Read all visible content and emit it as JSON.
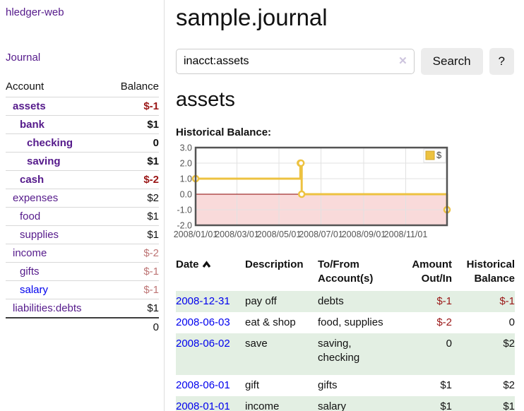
{
  "app": {
    "brand": "hledger-web"
  },
  "colors": {
    "link_purple": "#551a8b",
    "link_blue": "#0000ee",
    "negative_strong": "#9a1616",
    "negative_soft": "#bd7474",
    "row_stripe_green": "#e3efe3",
    "chart_line_gold": "#edc240",
    "chart_negative_region": "#f9dada",
    "chart_zero_line": "#8b0000"
  },
  "sidebar": {
    "nav_journal": "Journal",
    "col_account": "Account",
    "col_balance": "Balance",
    "accounts": [
      {
        "name": "assets",
        "indent": 1,
        "bold": true,
        "balance": "$-1",
        "tone": "neg"
      },
      {
        "name": "bank",
        "indent": 2,
        "bold": true,
        "balance": "$1",
        "tone": ""
      },
      {
        "name": "checking",
        "indent": 3,
        "bold": true,
        "balance": "0",
        "tone": ""
      },
      {
        "name": "saving",
        "indent": 3,
        "bold": true,
        "balance": "$1",
        "tone": ""
      },
      {
        "name": "cash",
        "indent": 2,
        "bold": true,
        "balance": "$-2",
        "tone": "neg"
      },
      {
        "name": "expenses",
        "indent": 1,
        "bold": false,
        "balance": "$2",
        "tone": ""
      },
      {
        "name": "food",
        "indent": 2,
        "bold": false,
        "balance": "$1",
        "tone": ""
      },
      {
        "name": "supplies",
        "indent": 2,
        "bold": false,
        "balance": "$1",
        "tone": ""
      },
      {
        "name": "income",
        "indent": 1,
        "bold": false,
        "balance": "$-2",
        "tone": "negsoft"
      },
      {
        "name": "gifts",
        "indent": 2,
        "bold": false,
        "balance": "$-1",
        "tone": "negsoft"
      },
      {
        "name": "salary",
        "indent": 2,
        "bold": false,
        "balance": "$-1",
        "tone": "negsoft",
        "unvisited": true
      },
      {
        "name": "liabilities:debts",
        "indent": 1,
        "bold": false,
        "balance": "$1",
        "tone": ""
      }
    ],
    "total": "0"
  },
  "header": {
    "title": "sample.journal"
  },
  "search": {
    "value": "inacct:assets",
    "clear_icon": "✕",
    "button_label": "Search",
    "help_label": "?"
  },
  "register": {
    "heading": "assets",
    "chart_label": "Historical Balance:",
    "table": {
      "h_date": "Date",
      "sort": "ascending",
      "h_desc": "Description",
      "h_accounts": "To/From Account(s)",
      "h_amount": "Amount Out/In",
      "h_balance": "Historical Balance",
      "rows": [
        {
          "date": "2008-12-31",
          "description": "pay off",
          "accounts": "debts",
          "amount": "$-1",
          "amount_neg": true,
          "balance": "$-1",
          "balance_neg": true,
          "tall": false
        },
        {
          "date": "2008-06-03",
          "description": "eat & shop",
          "accounts": "food, supplies",
          "amount": "$-2",
          "amount_neg": true,
          "balance": "0",
          "balance_neg": false,
          "tall": false
        },
        {
          "date": "2008-06-02",
          "description": "save",
          "accounts": "saving, checking",
          "amount": "0",
          "amount_neg": false,
          "balance": "$2",
          "balance_neg": false,
          "tall": true
        },
        {
          "date": "2008-06-01",
          "description": "gift",
          "accounts": "gifts",
          "amount": "$1",
          "amount_neg": false,
          "balance": "$2",
          "balance_neg": false,
          "tall": false
        },
        {
          "date": "2008-01-01",
          "description": "income",
          "accounts": "salary",
          "amount": "$1",
          "amount_neg": false,
          "balance": "$1",
          "balance_neg": false,
          "tall": false
        }
      ]
    }
  },
  "chart_data": {
    "type": "line",
    "title": "Historical Balance",
    "x_start": "2008-01-01",
    "x_end": "2008-12-31",
    "ylim": [
      -2,
      3
    ],
    "y_ticks": [
      3,
      2,
      1,
      0,
      -1,
      -2
    ],
    "x_ticks": [
      "2008/01/01",
      "2008/03/01",
      "2008/05/01",
      "2008/07/01",
      "2008/09/01",
      "2008/11/01"
    ],
    "grid": true,
    "legend_position": "top-right",
    "negative_region_color": "#f9dada",
    "zero_line_color": "#8b0000",
    "series": [
      {
        "name": "$",
        "color": "#edc240",
        "steps": true,
        "points": [
          [
            "2008-01-01",
            1
          ],
          [
            "2008-06-01",
            2
          ],
          [
            "2008-06-02",
            2
          ],
          [
            "2008-06-03",
            0
          ],
          [
            "2008-12-31",
            -1
          ]
        ]
      }
    ]
  }
}
